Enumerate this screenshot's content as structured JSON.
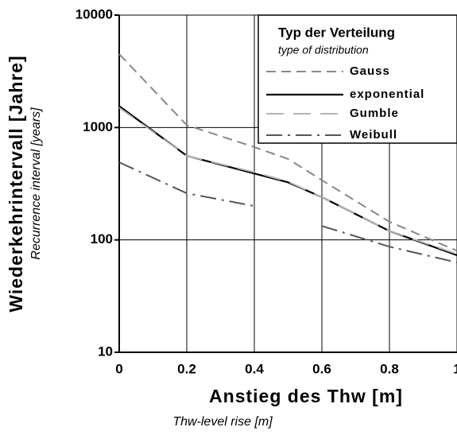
{
  "chart_data": {
    "type": "line",
    "xlabel": "Anstieg des Thw   [m]",
    "xlabel_sub": "Thw-level rise   [m]",
    "ylabel": "Wiederkehrintervall  [Jahre]",
    "ylabel_sub": "Recurrence interval   [years]",
    "legend_title": "Typ der Verteilung",
    "legend_subtitle": "type of distribution",
    "legend_position": "upper right",
    "yscale": "log",
    "grid": true,
    "x": [
      0,
      0.2,
      0.4,
      0.5,
      0.6,
      0.8,
      1
    ],
    "xlim": [
      0,
      1
    ],
    "xticks": [
      0,
      0.2,
      0.4,
      0.6,
      0.8,
      1
    ],
    "ylim": [
      10,
      10000
    ],
    "yticks": [
      10,
      100,
      1000,
      10000
    ],
    "series": [
      {
        "name": "Gauss",
        "color": "#888888",
        "linestyle": "dashed",
        "values": [
          4500,
          1050,
          670,
          525,
          340,
          145,
          80
        ]
      },
      {
        "name": "exponential",
        "color": "#000000",
        "linestyle": "solid",
        "values": [
          1550,
          560,
          390,
          325,
          240,
          120,
          73
        ]
      },
      {
        "name": "Gumble",
        "color": "#b4b4b4",
        "linestyle": "long-dashed",
        "values": [
          1500,
          560,
          400,
          330,
          240,
          120,
          75
        ]
      },
      {
        "name": "Weibull",
        "color": "#555555",
        "linestyle": "dash-dot",
        "values": [
          490,
          260,
          200,
          null,
          133,
          87,
          63
        ]
      }
    ]
  }
}
